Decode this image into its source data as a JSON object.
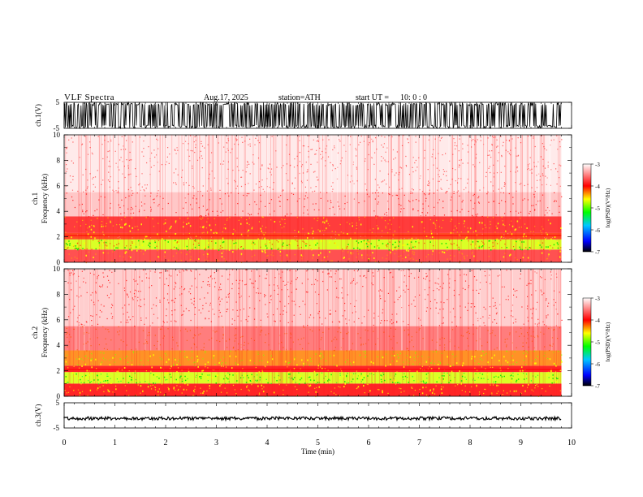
{
  "header": {
    "title": "VLF  Spectra",
    "date": "Aug.17, 2025",
    "station": "station=ATH",
    "start_label": "start  UT  =",
    "start_value": "10: 0   : 0"
  },
  "chart_data": [
    {
      "type": "line",
      "panel": "ch1-waveform",
      "ylabel": "ch.1(V)",
      "ylim": [
        -5,
        5
      ],
      "yticks": [
        "5",
        "-5"
      ],
      "series": [
        {
          "values_description_only": false,
          "values": []
        }
      ],
      "color": "#000000"
    },
    {
      "type": "heatmap",
      "panel": "ch1-spectrogram",
      "ylabel": "ch.1\nFrequency  (kHz)",
      "ylabel_lines": [
        "ch.1",
        "Frequency  (kHz)"
      ],
      "ylim": [
        0,
        10
      ],
      "yticks": [
        "0",
        "2",
        "4",
        "6",
        "8",
        "10"
      ],
      "colorbar": {
        "label": "log(PSD)(V²/Hz)",
        "range": [
          -7,
          -3
        ],
        "ticks": [
          "-3",
          "-4",
          "-5",
          "-6",
          "-7"
        ]
      },
      "bands": [
        {
          "from_khz": 0.0,
          "to_khz": 1.0,
          "level": -3.8
        },
        {
          "from_khz": 1.0,
          "to_khz": 1.8,
          "level": -4.7
        },
        {
          "from_khz": 1.8,
          "to_khz": 2.3,
          "level": -4.1
        },
        {
          "from_khz": 2.3,
          "to_khz": 3.6,
          "level": -3.9
        },
        {
          "from_khz": 3.6,
          "to_khz": 5.5,
          "level": -3.4
        },
        {
          "from_khz": 5.5,
          "to_khz": 10.0,
          "level": -3.15
        }
      ]
    },
    {
      "type": "heatmap",
      "panel": "ch2-spectrogram",
      "ylabel_lines": [
        "ch.2",
        "Frequency  (kHz)"
      ],
      "ylim": [
        0,
        10
      ],
      "yticks": [
        "0",
        "2",
        "4",
        "6",
        "8",
        "10"
      ],
      "colorbar": {
        "label": "log(PSD)(V²/Hz)",
        "range": [
          -7,
          -3
        ],
        "ticks": [
          "-3",
          "-4",
          "-5",
          "-6",
          "-7"
        ]
      },
      "bands": [
        {
          "from_khz": 0.0,
          "to_khz": 1.0,
          "level": -4.0
        },
        {
          "from_khz": 1.0,
          "to_khz": 1.9,
          "level": -4.7
        },
        {
          "from_khz": 1.9,
          "to_khz": 2.4,
          "level": -4.0
        },
        {
          "from_khz": 2.4,
          "to_khz": 3.6,
          "level": -4.3
        },
        {
          "from_khz": 3.6,
          "to_khz": 5.5,
          "level": -3.6
        },
        {
          "from_khz": 5.5,
          "to_khz": 10.0,
          "level": -3.35
        }
      ]
    },
    {
      "type": "line",
      "panel": "ch3-waveform",
      "ylabel": "ch.3(V)",
      "ylim": [
        -5,
        5
      ],
      "yticks": [
        "5",
        "-5"
      ],
      "level": -1.2,
      "color": "#000000"
    }
  ],
  "xaxis": {
    "label": "Time  (min)",
    "range": [
      0,
      10
    ],
    "data_end": 9.8,
    "ticks": [
      "0",
      "1",
      "2",
      "3",
      "4",
      "5",
      "6",
      "7",
      "8",
      "9",
      "10"
    ]
  },
  "colors": {
    "colormap": [
      "#000000",
      "#0000ff",
      "#00c8ff",
      "#00ff00",
      "#ffff00",
      "#ff0000",
      "#ffffff"
    ]
  }
}
